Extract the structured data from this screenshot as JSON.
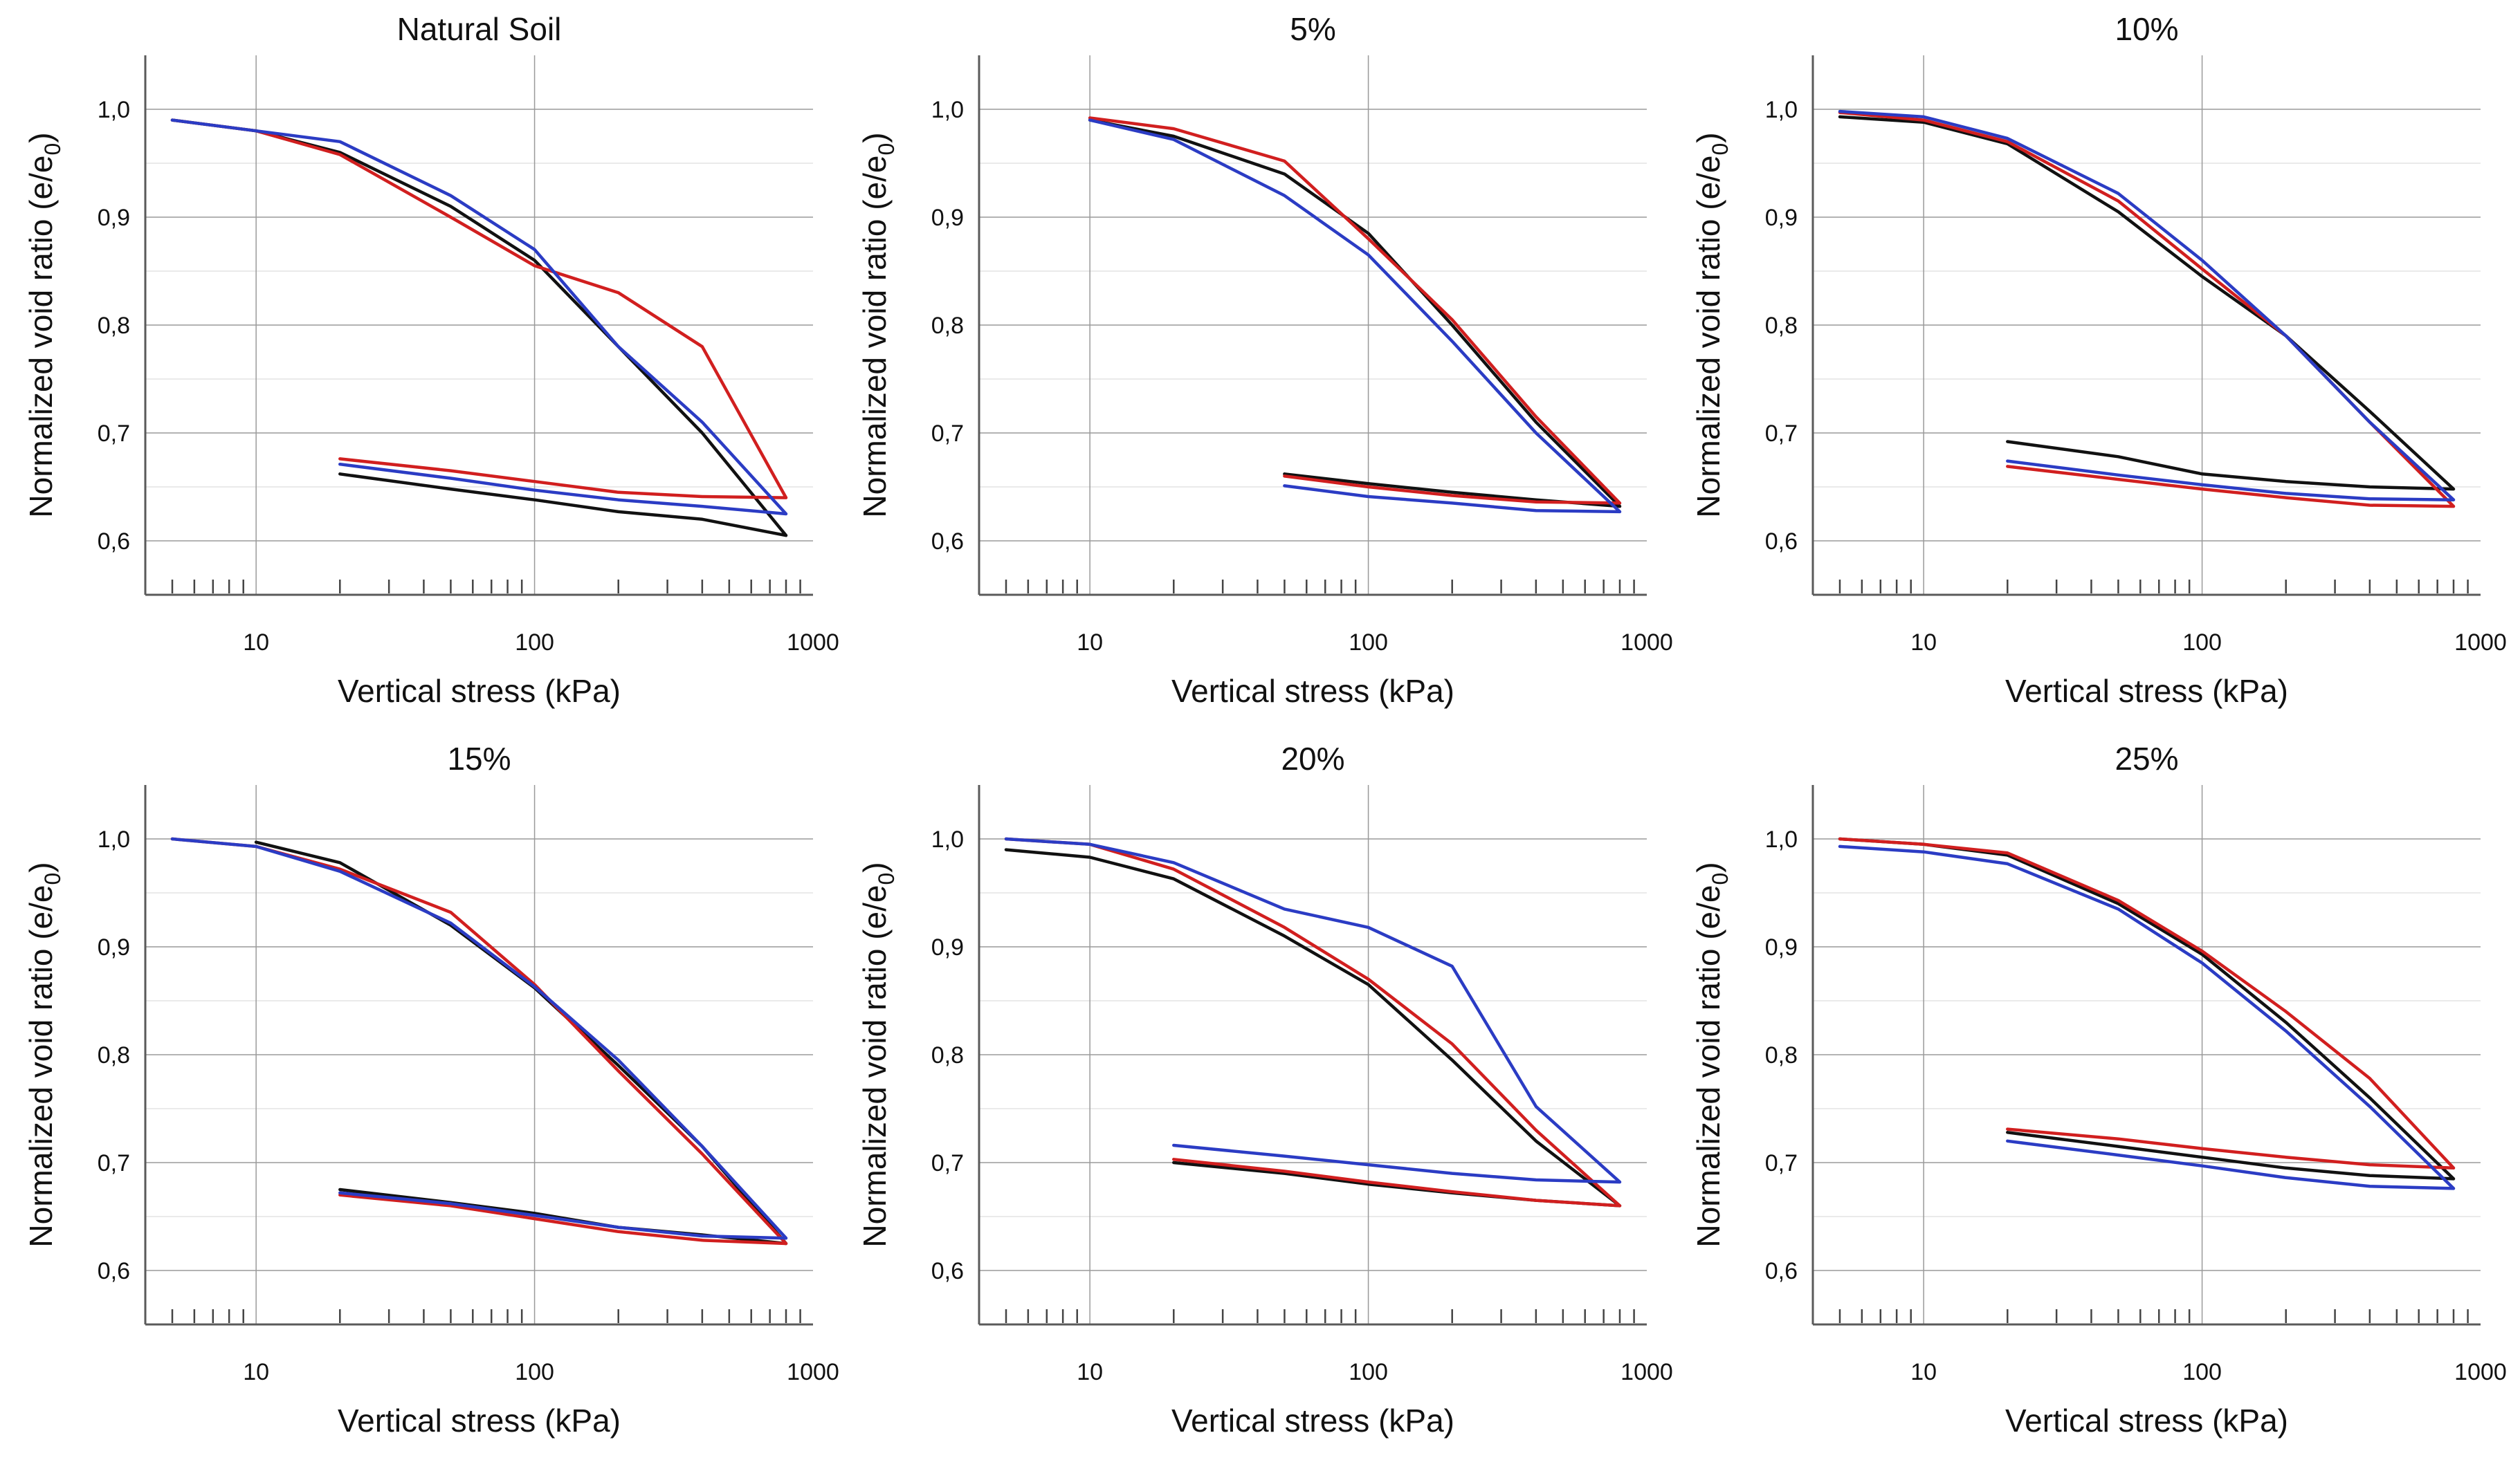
{
  "colors": {
    "black": "#111111",
    "red": "#d11f1f",
    "blue": "#2b3cc4"
  },
  "chart_data": [
    {
      "type": "line",
      "title": "Natural Soil",
      "xlabel": "Vertical stress (kPa)",
      "ylabel": "Normalized void ratio (e/e",
      "ylabel_sub": "0",
      "ylabel_close": ")",
      "xscale": "log",
      "xlim": [
        4,
        1000
      ],
      "ylim": [
        0.55,
        1.05
      ],
      "xticks": [
        10,
        100,
        1000
      ],
      "xtick_labels": [
        "10",
        "100",
        "1000"
      ],
      "yticks": [
        0.6,
        0.7,
        0.8,
        0.9,
        1.0
      ],
      "ytick_labels": [
        "0,6",
        "0,7",
        "0,8",
        "0,9",
        "1,0"
      ],
      "series": [
        {
          "name": "black",
          "color": "black",
          "x": [
            5,
            10,
            20,
            50,
            100,
            200,
            400,
            800,
            400,
            200,
            100,
            50,
            20
          ],
          "y": [
            0.99,
            0.98,
            0.96,
            0.91,
            0.86,
            0.78,
            0.7,
            0.605,
            0.62,
            0.627,
            0.638,
            0.648,
            0.662
          ]
        },
        {
          "name": "red",
          "color": "red",
          "x": [
            5,
            10,
            20,
            50,
            100,
            200,
            400,
            800,
            400,
            200,
            100,
            50,
            20
          ],
          "y": [
            0.99,
            0.98,
            0.958,
            0.9,
            0.855,
            0.83,
            0.78,
            0.64,
            0.641,
            0.645,
            0.655,
            0.665,
            0.676
          ]
        },
        {
          "name": "blue",
          "color": "blue",
          "x": [
            5,
            10,
            20,
            50,
            100,
            200,
            400,
            800,
            400,
            200,
            100,
            50,
            20
          ],
          "y": [
            0.99,
            0.98,
            0.97,
            0.92,
            0.87,
            0.78,
            0.71,
            0.625,
            0.632,
            0.638,
            0.647,
            0.658,
            0.671
          ]
        }
      ]
    },
    {
      "type": "line",
      "title": "5%",
      "xlabel": "Vertical stress (kPa)",
      "ylabel": "Normalized void ratio (e/e",
      "ylabel_sub": "0",
      "ylabel_close": ")",
      "xscale": "log",
      "xlim": [
        4,
        1000
      ],
      "ylim": [
        0.55,
        1.05
      ],
      "xticks": [
        10,
        100,
        1000
      ],
      "xtick_labels": [
        "10",
        "100",
        "1000"
      ],
      "yticks": [
        0.6,
        0.7,
        0.8,
        0.9,
        1.0
      ],
      "ytick_labels": [
        "0,6",
        "0,7",
        "0,8",
        "0,9",
        "1,0"
      ],
      "series": [
        {
          "name": "black",
          "color": "black",
          "x": [
            10,
            20,
            50,
            100,
            200,
            400,
            800,
            400,
            200,
            100,
            50
          ],
          "y": [
            0.99,
            0.975,
            0.94,
            0.885,
            0.8,
            0.71,
            0.632,
            0.638,
            0.645,
            0.653,
            0.662
          ]
        },
        {
          "name": "red",
          "color": "red",
          "x": [
            10,
            20,
            50,
            100,
            200,
            400,
            800,
            400,
            200,
            100,
            50
          ],
          "y": [
            0.992,
            0.982,
            0.952,
            0.88,
            0.805,
            0.715,
            0.635,
            0.636,
            0.642,
            0.65,
            0.66
          ]
        },
        {
          "name": "blue",
          "color": "blue",
          "x": [
            10,
            20,
            50,
            100,
            200,
            400,
            800,
            400,
            200,
            100,
            50
          ],
          "y": [
            0.99,
            0.972,
            0.92,
            0.865,
            0.785,
            0.7,
            0.627,
            0.628,
            0.635,
            0.641,
            0.651
          ]
        }
      ]
    },
    {
      "type": "line",
      "title": "10%",
      "xlabel": "Vertical stress (kPa)",
      "ylabel": "Normalized void ratio (e/e",
      "ylabel_sub": "0",
      "ylabel_close": ")",
      "xscale": "log",
      "xlim": [
        4,
        1000
      ],
      "ylim": [
        0.55,
        1.05
      ],
      "xticks": [
        10,
        100,
        1000
      ],
      "xtick_labels": [
        "10",
        "100",
        "1000"
      ],
      "yticks": [
        0.6,
        0.7,
        0.8,
        0.9,
        1.0
      ],
      "ytick_labels": [
        "0,6",
        "0,7",
        "0,8",
        "0,9",
        "1,0"
      ],
      "series": [
        {
          "name": "black",
          "color": "black",
          "x": [
            5,
            10,
            20,
            50,
            100,
            200,
            400,
            800,
            400,
            200,
            100,
            50,
            20
          ],
          "y": [
            0.993,
            0.988,
            0.968,
            0.905,
            0.845,
            0.79,
            0.72,
            0.648,
            0.65,
            0.655,
            0.662,
            0.678,
            0.692
          ]
        },
        {
          "name": "red",
          "color": "red",
          "x": [
            5,
            10,
            20,
            50,
            100,
            200,
            400,
            800,
            400,
            200,
            100,
            50,
            20
          ],
          "y": [
            0.997,
            0.99,
            0.97,
            0.915,
            0.852,
            0.79,
            0.71,
            0.632,
            0.633,
            0.64,
            0.648,
            0.657,
            0.669
          ]
        },
        {
          "name": "blue",
          "color": "blue",
          "x": [
            5,
            10,
            20,
            50,
            100,
            200,
            400,
            800,
            400,
            200,
            100,
            50,
            20
          ],
          "y": [
            0.998,
            0.993,
            0.973,
            0.922,
            0.86,
            0.79,
            0.71,
            0.638,
            0.639,
            0.644,
            0.652,
            0.661,
            0.674
          ]
        }
      ]
    },
    {
      "type": "line",
      "title": "15%",
      "xlabel": "Vertical stress (kPa)",
      "ylabel": "Normalized void ratio (e/e",
      "ylabel_sub": "0",
      "ylabel_close": ")",
      "xscale": "log",
      "xlim": [
        4,
        1000
      ],
      "ylim": [
        0.55,
        1.05
      ],
      "xticks": [
        10,
        100,
        1000
      ],
      "xtick_labels": [
        "10",
        "100",
        "1000"
      ],
      "yticks": [
        0.6,
        0.7,
        0.8,
        0.9,
        1.0
      ],
      "ytick_labels": [
        "0,6",
        "0,7",
        "0,8",
        "0,9",
        "1,0"
      ],
      "series": [
        {
          "name": "black",
          "color": "black",
          "x": [
            10,
            20,
            50,
            100,
            200,
            400,
            800,
            400,
            200,
            100,
            50,
            20
          ],
          "y": [
            0.997,
            0.978,
            0.92,
            0.862,
            0.79,
            0.715,
            0.625,
            0.633,
            0.64,
            0.653,
            0.663,
            0.675
          ]
        },
        {
          "name": "red",
          "color": "red",
          "x": [
            5,
            10,
            20,
            50,
            100,
            200,
            400,
            800,
            400,
            200,
            100,
            50,
            20
          ],
          "y": [
            1.0,
            0.993,
            0.972,
            0.932,
            0.865,
            0.785,
            0.708,
            0.625,
            0.628,
            0.636,
            0.648,
            0.66,
            0.67
          ]
        },
        {
          "name": "blue",
          "color": "blue",
          "x": [
            5,
            10,
            20,
            50,
            100,
            200,
            400,
            800,
            400,
            200,
            100,
            50,
            20
          ],
          "y": [
            1.0,
            0.993,
            0.97,
            0.922,
            0.863,
            0.795,
            0.715,
            0.63,
            0.632,
            0.64,
            0.651,
            0.662,
            0.672
          ]
        }
      ]
    },
    {
      "type": "line",
      "title": "20%",
      "xlabel": "Vertical stress (kPa)",
      "ylabel": "Normalized void ratio (e/e",
      "ylabel_sub": "0",
      "ylabel_close": ")",
      "xscale": "log",
      "xlim": [
        4,
        1000
      ],
      "ylim": [
        0.55,
        1.05
      ],
      "xticks": [
        10,
        100,
        1000
      ],
      "xtick_labels": [
        "10",
        "100",
        "1000"
      ],
      "yticks": [
        0.6,
        0.7,
        0.8,
        0.9,
        1.0
      ],
      "ytick_labels": [
        "0,6",
        "0,7",
        "0,8",
        "0,9",
        "1,0"
      ],
      "series": [
        {
          "name": "black",
          "color": "black",
          "x": [
            5,
            10,
            20,
            50,
            100,
            200,
            400,
            800,
            400,
            200,
            100,
            50,
            20
          ],
          "y": [
            0.99,
            0.983,
            0.963,
            0.91,
            0.865,
            0.795,
            0.72,
            0.66,
            0.665,
            0.672,
            0.68,
            0.69,
            0.7
          ]
        },
        {
          "name": "red",
          "color": "red",
          "x": [
            5,
            10,
            20,
            50,
            100,
            200,
            400,
            800,
            400,
            200,
            100,
            50,
            20
          ],
          "y": [
            1.0,
            0.995,
            0.972,
            0.918,
            0.87,
            0.81,
            0.73,
            0.66,
            0.665,
            0.673,
            0.682,
            0.692,
            0.703
          ]
        },
        {
          "name": "blue",
          "color": "blue",
          "x": [
            5,
            10,
            20,
            50,
            100,
            200,
            400,
            800,
            400,
            200,
            100,
            50,
            20
          ],
          "y": [
            1.0,
            0.995,
            0.978,
            0.935,
            0.918,
            0.882,
            0.752,
            0.682,
            0.684,
            0.69,
            0.698,
            0.706,
            0.716
          ]
        }
      ]
    },
    {
      "type": "line",
      "title": "25%",
      "xlabel": "Vertical stress (kPa)",
      "ylabel": "Normalized void ratio (e/e",
      "ylabel_sub": "0",
      "ylabel_close": ")",
      "xscale": "log",
      "xlim": [
        4,
        1000
      ],
      "ylim": [
        0.55,
        1.05
      ],
      "xticks": [
        10,
        100,
        1000
      ],
      "xtick_labels": [
        "10",
        "100",
        "1000"
      ],
      "yticks": [
        0.6,
        0.7,
        0.8,
        0.9,
        1.0
      ],
      "ytick_labels": [
        "0,6",
        "0,7",
        "0,8",
        "0,9",
        "1,0"
      ],
      "series": [
        {
          "name": "black",
          "color": "black",
          "x": [
            5,
            10,
            20,
            50,
            100,
            200,
            400,
            800,
            400,
            200,
            100,
            50,
            20
          ],
          "y": [
            1.0,
            0.995,
            0.985,
            0.94,
            0.893,
            0.83,
            0.76,
            0.685,
            0.688,
            0.695,
            0.705,
            0.715,
            0.728
          ]
        },
        {
          "name": "red",
          "color": "red",
          "x": [
            5,
            10,
            20,
            50,
            100,
            200,
            400,
            800,
            400,
            200,
            100,
            50,
            20
          ],
          "y": [
            1.0,
            0.995,
            0.987,
            0.943,
            0.896,
            0.84,
            0.778,
            0.695,
            0.698,
            0.705,
            0.713,
            0.722,
            0.731
          ]
        },
        {
          "name": "blue",
          "color": "blue",
          "x": [
            5,
            10,
            20,
            50,
            100,
            200,
            400,
            800,
            400,
            200,
            100,
            50,
            20
          ],
          "y": [
            0.993,
            0.988,
            0.977,
            0.935,
            0.885,
            0.822,
            0.752,
            0.676,
            0.678,
            0.686,
            0.697,
            0.707,
            0.72
          ]
        }
      ]
    }
  ]
}
